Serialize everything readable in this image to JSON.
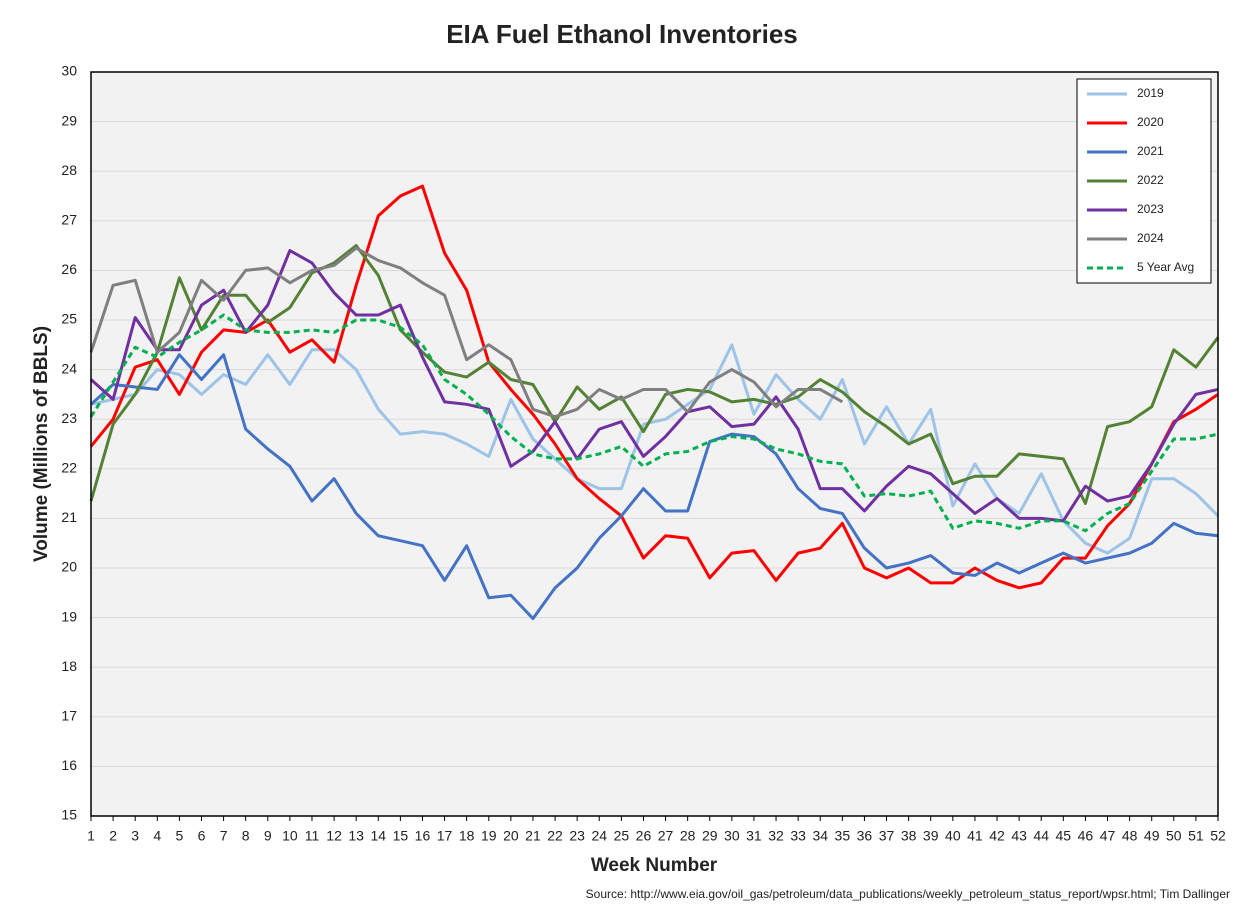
{
  "chart_data": {
    "type": "line",
    "title": "EIA Fuel Ethanol Inventories",
    "x_label": "Week Number",
    "y_label": "Volume (Millions of BBLS)",
    "source": "Source: http://www.eia.gov/oil_gas/petroleum/data_publications/weekly_petroleum_status_report/wpsr.html; Tim Dallinger",
    "x": [
      1,
      2,
      3,
      4,
      5,
      6,
      7,
      8,
      9,
      10,
      11,
      12,
      13,
      14,
      15,
      16,
      17,
      18,
      19,
      20,
      21,
      22,
      23,
      24,
      25,
      26,
      27,
      28,
      29,
      30,
      31,
      32,
      33,
      34,
      35,
      36,
      37,
      38,
      39,
      40,
      41,
      42,
      43,
      44,
      45,
      46,
      47,
      48,
      49,
      50,
      51,
      52
    ],
    "xlim": [
      1,
      52
    ],
    "xticks": [
      1,
      2,
      3,
      4,
      5,
      6,
      7,
      8,
      9,
      10,
      11,
      12,
      13,
      14,
      15,
      16,
      17,
      18,
      19,
      20,
      21,
      22,
      23,
      24,
      25,
      26,
      27,
      28,
      29,
      30,
      31,
      32,
      33,
      34,
      35,
      36,
      37,
      38,
      39,
      40,
      41,
      42,
      43,
      44,
      45,
      46,
      47,
      48,
      49,
      50,
      51,
      52
    ],
    "ylim": [
      15,
      30
    ],
    "yticks": [
      15,
      16,
      17,
      18,
      19,
      20,
      21,
      22,
      23,
      24,
      25,
      26,
      27,
      28,
      29,
      30
    ],
    "grid": true,
    "legend": "upper right",
    "series": [
      {
        "name": "2019",
        "color": "#9dc3e6",
        "values": [
          23.3,
          23.4,
          23.5,
          24.0,
          23.9,
          23.5,
          23.9,
          23.7,
          24.3,
          23.7,
          24.4,
          24.4,
          24.0,
          23.2,
          22.7,
          22.75,
          22.7,
          22.5,
          22.25,
          23.4,
          22.6,
          22.2,
          21.8,
          21.6,
          21.6,
          22.9,
          23.0,
          23.3,
          23.6,
          24.5,
          23.1,
          23.9,
          23.4,
          23.0,
          23.8,
          22.5,
          23.25,
          22.5,
          23.2,
          21.25,
          22.1,
          21.4,
          21.1,
          21.9,
          20.95,
          20.5,
          20.3,
          20.6,
          21.8,
          21.8,
          21.5,
          21.05
        ]
      },
      {
        "name": "2020",
        "color": "#ff0000",
        "values": [
          22.45,
          23.0,
          24.05,
          24.2,
          23.5,
          24.35,
          24.8,
          24.75,
          25.0,
          24.35,
          24.6,
          24.15,
          25.7,
          27.1,
          27.5,
          27.7,
          26.35,
          25.6,
          24.15,
          23.6,
          23.1,
          22.5,
          21.8,
          21.4,
          21.05,
          20.2,
          20.65,
          20.6,
          19.8,
          20.3,
          20.35,
          19.75,
          20.3,
          20.4,
          20.9,
          20.0,
          19.8,
          20.0,
          19.7,
          19.7,
          20.0,
          19.75,
          19.6,
          19.7,
          20.2,
          20.2,
          20.85,
          21.3,
          22.1,
          22.95,
          23.2,
          23.5
        ]
      },
      {
        "name": "2021",
        "color": "#4472c4",
        "values": [
          23.3,
          23.7,
          23.65,
          23.6,
          24.3,
          23.8,
          24.3,
          22.8,
          22.4,
          22.05,
          21.35,
          21.8,
          21.1,
          20.65,
          20.55,
          20.45,
          19.75,
          20.45,
          19.4,
          19.45,
          18.98,
          19.6,
          20.0,
          20.6,
          21.05,
          21.6,
          21.15,
          21.15,
          22.55,
          22.7,
          22.65,
          22.3,
          21.6,
          21.2,
          21.1,
          20.4,
          20.0,
          20.1,
          20.25,
          19.9,
          19.85,
          20.1,
          19.9,
          20.1,
          20.3,
          20.1,
          20.2,
          20.3,
          20.5,
          20.9,
          20.7,
          20.65
        ]
      },
      {
        "name": "2022",
        "color": "#548235",
        "values": [
          21.35,
          22.9,
          23.5,
          24.35,
          25.85,
          24.8,
          25.5,
          25.5,
          24.95,
          25.25,
          25.95,
          26.15,
          26.5,
          25.9,
          24.8,
          24.35,
          23.95,
          23.85,
          24.15,
          23.8,
          23.7,
          22.95,
          23.65,
          23.2,
          23.45,
          22.75,
          23.5,
          23.6,
          23.55,
          23.35,
          23.4,
          23.3,
          23.45,
          23.8,
          23.55,
          23.15,
          22.85,
          22.5,
          22.7,
          21.7,
          21.85,
          21.85,
          22.3,
          22.25,
          22.2,
          21.3,
          22.85,
          22.95,
          23.25,
          24.4,
          24.05,
          24.65
        ]
      },
      {
        "name": "2023",
        "color": "#7030a0",
        "values": [
          23.8,
          23.4,
          25.05,
          24.4,
          24.4,
          25.3,
          25.6,
          24.75,
          25.3,
          26.4,
          26.15,
          25.55,
          25.1,
          25.1,
          25.3,
          24.25,
          23.35,
          23.3,
          23.2,
          22.05,
          22.35,
          22.95,
          22.2,
          22.8,
          22.95,
          22.25,
          22.65,
          23.15,
          23.25,
          22.85,
          22.9,
          23.45,
          22.8,
          21.6,
          21.6,
          21.15,
          21.65,
          22.05,
          21.9,
          21.5,
          21.1,
          21.4,
          21.0,
          21.0,
          20.95,
          21.65,
          21.35,
          21.45,
          22.1,
          22.9,
          23.5,
          23.6
        ]
      },
      {
        "name": "2024",
        "color": "#7f7f7f",
        "values": [
          24.35,
          25.7,
          25.8,
          24.35,
          24.75,
          25.8,
          25.4,
          26.0,
          26.05,
          25.75,
          26.0,
          26.1,
          26.45,
          26.2,
          26.05,
          25.75,
          25.5,
          24.2,
          24.5,
          24.2,
          23.2,
          23.05,
          23.2,
          23.6,
          23.4,
          23.6,
          23.6,
          23.15,
          23.75,
          24.0,
          23.75,
          23.25,
          23.6,
          23.6,
          23.35,
          null,
          null,
          null,
          null,
          null,
          null,
          null,
          null,
          null,
          null,
          null,
          null,
          null,
          null,
          null,
          null,
          null
        ]
      },
      {
        "name": "5 Year Avg",
        "color": "#00b050",
        "style": "dashed",
        "values": [
          23.05,
          23.75,
          24.45,
          24.25,
          24.55,
          24.8,
          25.1,
          24.8,
          24.75,
          24.75,
          24.8,
          24.75,
          25.0,
          25.0,
          24.85,
          24.5,
          23.8,
          23.5,
          23.1,
          22.65,
          22.3,
          22.2,
          22.2,
          22.3,
          22.45,
          22.05,
          22.3,
          22.35,
          22.55,
          22.65,
          22.6,
          22.4,
          22.3,
          22.15,
          22.1,
          21.45,
          21.5,
          21.45,
          21.55,
          20.8,
          20.95,
          20.9,
          20.8,
          20.95,
          20.95,
          20.75,
          21.1,
          21.3,
          21.95,
          22.6,
          22.6,
          22.7
        ]
      }
    ]
  }
}
